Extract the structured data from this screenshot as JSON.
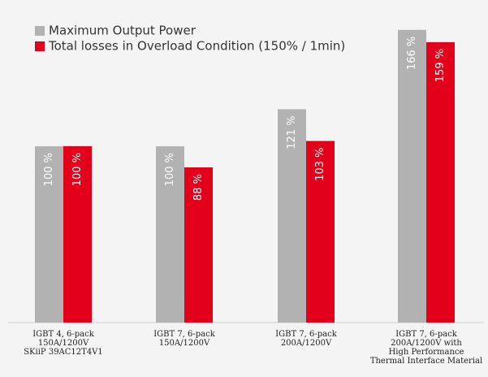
{
  "chart_data": {
    "type": "bar",
    "categories": [
      [
        "IGBT 4, 6-pack",
        "150A/1200V",
        "SKiiP 39AC12T4V1"
      ],
      [
        "IGBT 7, 6-pack",
        "150A/1200V"
      ],
      [
        "IGBT 7, 6-pack",
        "200A/1200V"
      ],
      [
        "IGBT 7, 6-pack",
        "200A/1200V with",
        "High Performance",
        "Thermal Interface Material"
      ]
    ],
    "series": [
      {
        "name": "Maximum Output Power",
        "color": "#b2b2b2",
        "values": [
          100,
          100,
          121,
          166
        ],
        "value_labels": [
          "100 %",
          "100 %",
          "121 %",
          "166 %"
        ]
      },
      {
        "name": "Total losses in Overload Condition (150% / 1min)",
        "color": "#e2001a",
        "values": [
          100,
          88,
          103,
          159
        ],
        "value_labels": [
          "100 %",
          "88 %",
          "103 %",
          "159 %"
        ]
      }
    ]
  }
}
